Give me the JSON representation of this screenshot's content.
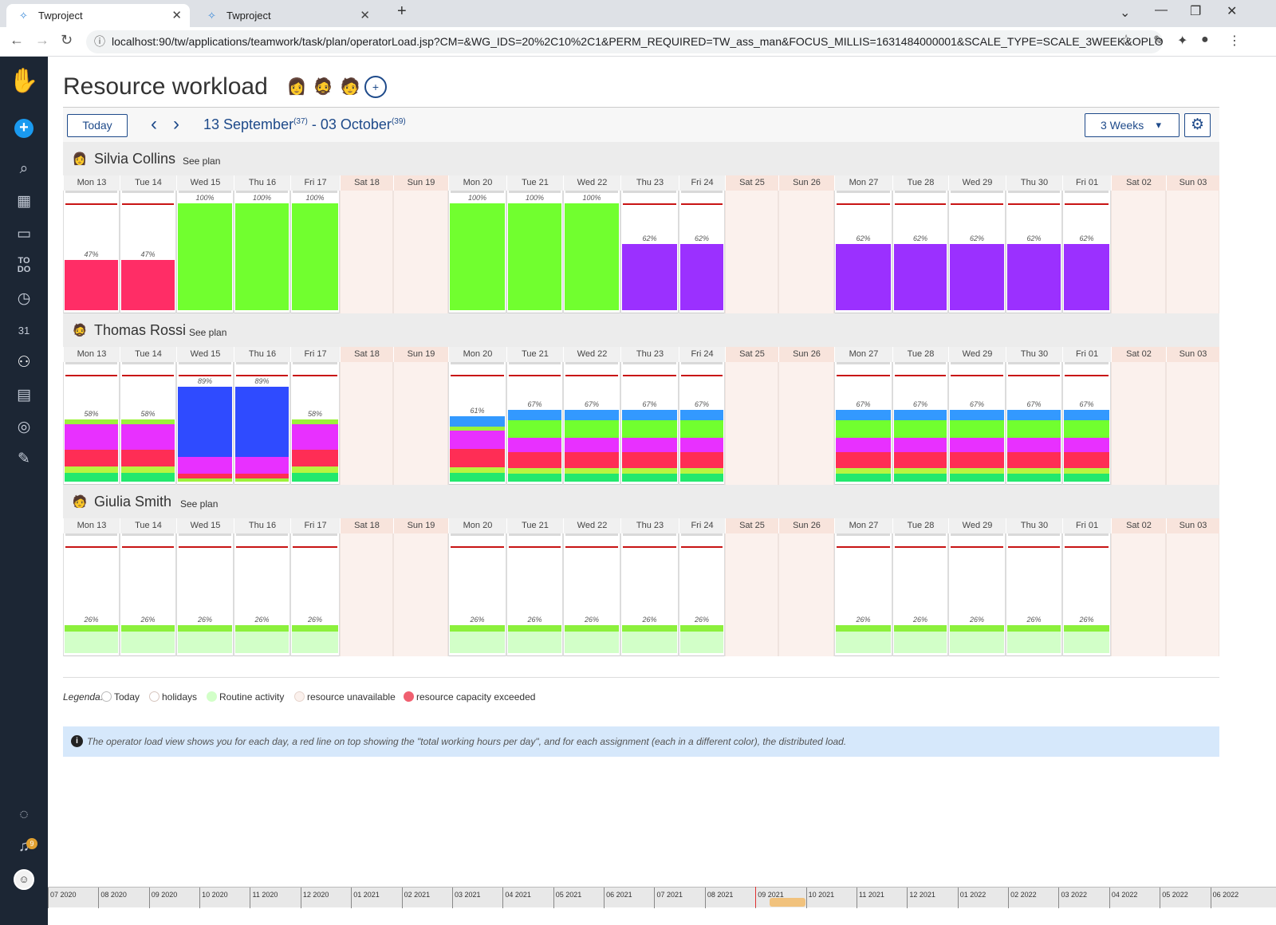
{
  "browser": {
    "tabs": [
      {
        "title": "Twproject"
      },
      {
        "title": "Twproject"
      }
    ],
    "url": "localhost:90/tw/applications/teamwork/task/plan/operatorLoad.jsp?CM=&WG_IDS=20%2C10%2C1&PERM_REQUIRED=TW_ass_man&FOCUS_MILLIS=1631484000001&SCALE_TYPE=SCALE_3WEEK&OPLOA..."
  },
  "sidebar": {
    "notification_count": "9"
  },
  "page": {
    "title": "Resource workload"
  },
  "toolbar": {
    "today_label": "Today",
    "period_start": "13 September",
    "period_start_week": "(37)",
    "period_separator": " - ",
    "period_end": "03 October",
    "period_end_week": "(39)",
    "scale_label": "3 Weeks"
  },
  "days": [
    {
      "label": "Mon 13",
      "weekend": false
    },
    {
      "label": "Tue 14",
      "weekend": false
    },
    {
      "label": "Wed 15",
      "weekend": false
    },
    {
      "label": "Thu 16",
      "weekend": false
    },
    {
      "label": "Fri 17",
      "weekend": false
    },
    {
      "label": "Sat 18",
      "weekend": true
    },
    {
      "label": "Sun 19",
      "weekend": true
    },
    {
      "label": "Mon 20",
      "weekend": false
    },
    {
      "label": "Tue 21",
      "weekend": false
    },
    {
      "label": "Wed 22",
      "weekend": false
    },
    {
      "label": "Thu 23",
      "weekend": false
    },
    {
      "label": "Fri 24",
      "weekend": false
    },
    {
      "label": "Sat 25",
      "weekend": true
    },
    {
      "label": "Sun 26",
      "weekend": true
    },
    {
      "label": "Mon 27",
      "weekend": false
    },
    {
      "label": "Tue 28",
      "weekend": false
    },
    {
      "label": "Wed 29",
      "weekend": false
    },
    {
      "label": "Thu 30",
      "weekend": false
    },
    {
      "label": "Fri 01",
      "weekend": false
    },
    {
      "label": "Sat 02",
      "weekend": true
    },
    {
      "label": "Sun 03",
      "weekend": true
    }
  ],
  "see_plan_label": "See plan",
  "resources": [
    {
      "name": "Silvia Collins",
      "loads": [
        {
          "label": "47%",
          "load": 47,
          "stack": [
            {
              "color": "#ff2d66",
              "frac": 1
            }
          ]
        },
        {
          "label": "47%",
          "load": 47,
          "stack": [
            {
              "color": "#ff2d66",
              "frac": 1
            }
          ]
        },
        {
          "label": "100%",
          "load": 100,
          "stack": [
            {
              "color": "#71ff2f",
              "frac": 1
            }
          ]
        },
        {
          "label": "100%",
          "load": 100,
          "stack": [
            {
              "color": "#71ff2f",
              "frac": 1
            }
          ]
        },
        {
          "label": "100%",
          "load": 100,
          "stack": [
            {
              "color": "#71ff2f",
              "frac": 1
            }
          ]
        },
        null,
        null,
        {
          "label": "100%",
          "load": 100,
          "stack": [
            {
              "color": "#71ff2f",
              "frac": 1
            }
          ]
        },
        {
          "label": "100%",
          "load": 100,
          "stack": [
            {
              "color": "#71ff2f",
              "frac": 1
            }
          ]
        },
        {
          "label": "100%",
          "load": 100,
          "stack": [
            {
              "color": "#71ff2f",
              "frac": 1
            }
          ]
        },
        {
          "label": "62%",
          "load": 62,
          "stack": [
            {
              "color": "#9b30ff",
              "frac": 1
            }
          ]
        },
        {
          "label": "62%",
          "load": 62,
          "stack": [
            {
              "color": "#9b30ff",
              "frac": 1
            }
          ]
        },
        null,
        null,
        {
          "label": "62%",
          "load": 62,
          "stack": [
            {
              "color": "#9b30ff",
              "frac": 1
            }
          ]
        },
        {
          "label": "62%",
          "load": 62,
          "stack": [
            {
              "color": "#9b30ff",
              "frac": 1
            }
          ]
        },
        {
          "label": "62%",
          "load": 62,
          "stack": [
            {
              "color": "#9b30ff",
              "frac": 1
            }
          ]
        },
        {
          "label": "62%",
          "load": 62,
          "stack": [
            {
              "color": "#9b30ff",
              "frac": 1
            }
          ]
        },
        {
          "label": "62%",
          "load": 62,
          "stack": [
            {
              "color": "#9b30ff",
              "frac": 1
            }
          ]
        },
        null,
        null
      ]
    },
    {
      "name": "Thomas Rossi",
      "loads": [
        {
          "label": "58%",
          "load": 58,
          "stack": [
            {
              "color": "#22e86e",
              "frac": 0.14
            },
            {
              "color": "#b7f540",
              "frac": 0.1
            },
            {
              "color": "#ff2d55",
              "frac": 0.28
            },
            {
              "color": "#e830ff",
              "frac": 0.4
            },
            {
              "color": "#9cf23a",
              "frac": 0.08
            }
          ]
        },
        {
          "label": "58%",
          "load": 58,
          "stack": [
            {
              "color": "#22e86e",
              "frac": 0.14
            },
            {
              "color": "#b7f540",
              "frac": 0.1
            },
            {
              "color": "#ff2d55",
              "frac": 0.28
            },
            {
              "color": "#e830ff",
              "frac": 0.4
            },
            {
              "color": "#9cf23a",
              "frac": 0.08
            }
          ]
        },
        {
          "label": "89%",
          "load": 89,
          "stack": [
            {
              "color": "#9cf23a",
              "frac": 0.03
            },
            {
              "color": "#ff2d55",
              "frac": 0.05
            },
            {
              "color": "#e830ff",
              "frac": 0.18
            },
            {
              "color": "#2f4bff",
              "frac": 0.74
            }
          ]
        },
        {
          "label": "89%",
          "load": 89,
          "stack": [
            {
              "color": "#9cf23a",
              "frac": 0.03
            },
            {
              "color": "#ff2d55",
              "frac": 0.05
            },
            {
              "color": "#e830ff",
              "frac": 0.18
            },
            {
              "color": "#2f4bff",
              "frac": 0.74
            }
          ]
        },
        {
          "label": "58%",
          "load": 58,
          "stack": [
            {
              "color": "#22e86e",
              "frac": 0.14
            },
            {
              "color": "#b7f540",
              "frac": 0.1
            },
            {
              "color": "#ff2d55",
              "frac": 0.28
            },
            {
              "color": "#e830ff",
              "frac": 0.4
            },
            {
              "color": "#9cf23a",
              "frac": 0.08
            }
          ]
        },
        null,
        null,
        {
          "label": "61%",
          "load": 61,
          "stack": [
            {
              "color": "#22e86e",
              "frac": 0.14
            },
            {
              "color": "#b7f540",
              "frac": 0.08
            },
            {
              "color": "#ff2d55",
              "frac": 0.28
            },
            {
              "color": "#e830ff",
              "frac": 0.28
            },
            {
              "color": "#9cf23a",
              "frac": 0.06
            },
            {
              "color": "#3399ff",
              "frac": 0.16
            }
          ]
        },
        {
          "label": "67%",
          "load": 67,
          "stack": [
            {
              "color": "#22e86e",
              "frac": 0.11
            },
            {
              "color": "#b7f540",
              "frac": 0.08
            },
            {
              "color": "#ff2d55",
              "frac": 0.22
            },
            {
              "color": "#e830ff",
              "frac": 0.2
            },
            {
              "color": "#71ff2f",
              "frac": 0.25
            },
            {
              "color": "#3399ff",
              "frac": 0.14
            }
          ]
        },
        {
          "label": "67%",
          "load": 67,
          "stack": [
            {
              "color": "#22e86e",
              "frac": 0.11
            },
            {
              "color": "#b7f540",
              "frac": 0.08
            },
            {
              "color": "#ff2d55",
              "frac": 0.22
            },
            {
              "color": "#e830ff",
              "frac": 0.2
            },
            {
              "color": "#71ff2f",
              "frac": 0.25
            },
            {
              "color": "#3399ff",
              "frac": 0.14
            }
          ]
        },
        {
          "label": "67%",
          "load": 67,
          "stack": [
            {
              "color": "#22e86e",
              "frac": 0.11
            },
            {
              "color": "#b7f540",
              "frac": 0.08
            },
            {
              "color": "#ff2d55",
              "frac": 0.22
            },
            {
              "color": "#e830ff",
              "frac": 0.2
            },
            {
              "color": "#71ff2f",
              "frac": 0.25
            },
            {
              "color": "#3399ff",
              "frac": 0.14
            }
          ]
        },
        {
          "label": "67%",
          "load": 67,
          "stack": [
            {
              "color": "#22e86e",
              "frac": 0.11
            },
            {
              "color": "#b7f540",
              "frac": 0.08
            },
            {
              "color": "#ff2d55",
              "frac": 0.22
            },
            {
              "color": "#e830ff",
              "frac": 0.2
            },
            {
              "color": "#71ff2f",
              "frac": 0.25
            },
            {
              "color": "#3399ff",
              "frac": 0.14
            }
          ]
        },
        null,
        null,
        {
          "label": "67%",
          "load": 67,
          "stack": [
            {
              "color": "#22e86e",
              "frac": 0.11
            },
            {
              "color": "#b7f540",
              "frac": 0.08
            },
            {
              "color": "#ff2d55",
              "frac": 0.22
            },
            {
              "color": "#e830ff",
              "frac": 0.2
            },
            {
              "color": "#71ff2f",
              "frac": 0.25
            },
            {
              "color": "#3399ff",
              "frac": 0.14
            }
          ]
        },
        {
          "label": "67%",
          "load": 67,
          "stack": [
            {
              "color": "#22e86e",
              "frac": 0.11
            },
            {
              "color": "#b7f540",
              "frac": 0.08
            },
            {
              "color": "#ff2d55",
              "frac": 0.22
            },
            {
              "color": "#e830ff",
              "frac": 0.2
            },
            {
              "color": "#71ff2f",
              "frac": 0.25
            },
            {
              "color": "#3399ff",
              "frac": 0.14
            }
          ]
        },
        {
          "label": "67%",
          "load": 67,
          "stack": [
            {
              "color": "#22e86e",
              "frac": 0.11
            },
            {
              "color": "#b7f540",
              "frac": 0.08
            },
            {
              "color": "#ff2d55",
              "frac": 0.22
            },
            {
              "color": "#e830ff",
              "frac": 0.2
            },
            {
              "color": "#71ff2f",
              "frac": 0.25
            },
            {
              "color": "#3399ff",
              "frac": 0.14
            }
          ]
        },
        {
          "label": "67%",
          "load": 67,
          "stack": [
            {
              "color": "#22e86e",
              "frac": 0.11
            },
            {
              "color": "#b7f540",
              "frac": 0.08
            },
            {
              "color": "#ff2d55",
              "frac": 0.22
            },
            {
              "color": "#e830ff",
              "frac": 0.2
            },
            {
              "color": "#71ff2f",
              "frac": 0.25
            },
            {
              "color": "#3399ff",
              "frac": 0.14
            }
          ]
        },
        {
          "label": "67%",
          "load": 67,
          "stack": [
            {
              "color": "#22e86e",
              "frac": 0.11
            },
            {
              "color": "#b7f540",
              "frac": 0.08
            },
            {
              "color": "#ff2d55",
              "frac": 0.22
            },
            {
              "color": "#e830ff",
              "frac": 0.2
            },
            {
              "color": "#71ff2f",
              "frac": 0.25
            },
            {
              "color": "#3399ff",
              "frac": 0.14
            }
          ]
        },
        null,
        null
      ]
    },
    {
      "name": "Giulia Smith",
      "loads": [
        {
          "label": "26%",
          "load": 26,
          "stack": [
            {
              "color": "#d2ffc8",
              "frac": 0.78
            },
            {
              "color": "#8cf03c",
              "frac": 0.22
            }
          ]
        },
        {
          "label": "26%",
          "load": 26,
          "stack": [
            {
              "color": "#d2ffc8",
              "frac": 0.78
            },
            {
              "color": "#8cf03c",
              "frac": 0.22
            }
          ]
        },
        {
          "label": "26%",
          "load": 26,
          "stack": [
            {
              "color": "#d2ffc8",
              "frac": 0.78
            },
            {
              "color": "#8cf03c",
              "frac": 0.22
            }
          ]
        },
        {
          "label": "26%",
          "load": 26,
          "stack": [
            {
              "color": "#d2ffc8",
              "frac": 0.78
            },
            {
              "color": "#8cf03c",
              "frac": 0.22
            }
          ]
        },
        {
          "label": "26%",
          "load": 26,
          "stack": [
            {
              "color": "#d2ffc8",
              "frac": 0.78
            },
            {
              "color": "#8cf03c",
              "frac": 0.22
            }
          ]
        },
        null,
        null,
        {
          "label": "26%",
          "load": 26,
          "stack": [
            {
              "color": "#d2ffc8",
              "frac": 0.78
            },
            {
              "color": "#8cf03c",
              "frac": 0.22
            }
          ]
        },
        {
          "label": "26%",
          "load": 26,
          "stack": [
            {
              "color": "#d2ffc8",
              "frac": 0.78
            },
            {
              "color": "#8cf03c",
              "frac": 0.22
            }
          ]
        },
        {
          "label": "26%",
          "load": 26,
          "stack": [
            {
              "color": "#d2ffc8",
              "frac": 0.78
            },
            {
              "color": "#8cf03c",
              "frac": 0.22
            }
          ]
        },
        {
          "label": "26%",
          "load": 26,
          "stack": [
            {
              "color": "#d2ffc8",
              "frac": 0.78
            },
            {
              "color": "#8cf03c",
              "frac": 0.22
            }
          ]
        },
        {
          "label": "26%",
          "load": 26,
          "stack": [
            {
              "color": "#d2ffc8",
              "frac": 0.78
            },
            {
              "color": "#8cf03c",
              "frac": 0.22
            }
          ]
        },
        null,
        null,
        {
          "label": "26%",
          "load": 26,
          "stack": [
            {
              "color": "#d2ffc8",
              "frac": 0.78
            },
            {
              "color": "#8cf03c",
              "frac": 0.22
            }
          ]
        },
        {
          "label": "26%",
          "load": 26,
          "stack": [
            {
              "color": "#d2ffc8",
              "frac": 0.78
            },
            {
              "color": "#8cf03c",
              "frac": 0.22
            }
          ]
        },
        {
          "label": "26%",
          "load": 26,
          "stack": [
            {
              "color": "#d2ffc8",
              "frac": 0.78
            },
            {
              "color": "#8cf03c",
              "frac": 0.22
            }
          ]
        },
        {
          "label": "26%",
          "load": 26,
          "stack": [
            {
              "color": "#d2ffc8",
              "frac": 0.78
            },
            {
              "color": "#8cf03c",
              "frac": 0.22
            }
          ]
        },
        {
          "label": "26%",
          "load": 26,
          "stack": [
            {
              "color": "#d2ffc8",
              "frac": 0.78
            },
            {
              "color": "#8cf03c",
              "frac": 0.22
            }
          ]
        },
        null,
        null
      ]
    }
  ],
  "legend": {
    "title": "Legenda:",
    "items": [
      {
        "label": "Today",
        "color": "#ffffff"
      },
      {
        "label": "holidays",
        "color": "#ffffff"
      },
      {
        "label": "Routine activity",
        "color": "#d2ffc8"
      },
      {
        "label": "resource unavailable",
        "color": "#fbf1ed"
      },
      {
        "label": "resource capacity exceeded",
        "color": "#f06070"
      }
    ]
  },
  "info_text": "The operator load view shows you for each day, a red line on top showing the \"total working hours per day\", and for each assignment (each in a different color), the distributed load.",
  "timeline_months": [
    "07 2020",
    "08 2020",
    "09 2020",
    "10 2020",
    "11 2020",
    "12 2020",
    "01 2021",
    "02 2021",
    "03 2021",
    "04 2021",
    "05 2021",
    "06 2021",
    "07 2021",
    "08 2021",
    "09 2021",
    "10 2021",
    "11 2021",
    "12 2021",
    "01 2022",
    "02 2022",
    "03 2022",
    "04 2022",
    "05 2022",
    "06 2022"
  ]
}
